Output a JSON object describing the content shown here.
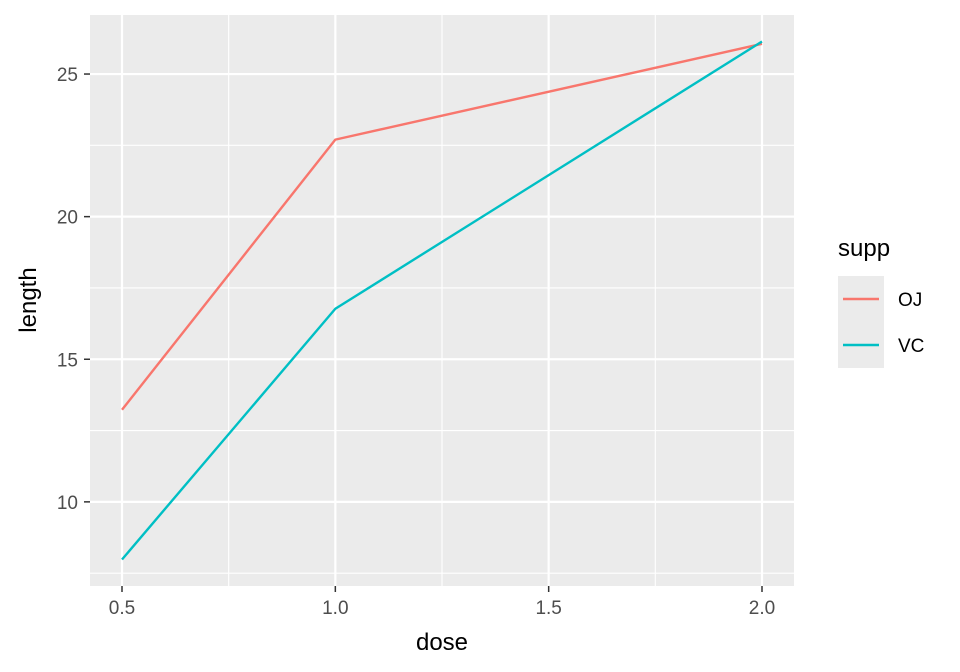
{
  "chart_data": {
    "type": "line",
    "x": [
      0.5,
      1.0,
      2.0
    ],
    "series": [
      {
        "name": "OJ",
        "values": [
          13.23,
          22.7,
          26.06
        ],
        "color": "#F8766D"
      },
      {
        "name": "VC",
        "values": [
          7.98,
          16.77,
          26.14
        ],
        "color": "#00BFC4"
      }
    ],
    "xlabel": "dose",
    "ylabel": "length",
    "xlim": [
      0.425,
      2.075
    ],
    "ylim": [
      7.05,
      27.07
    ],
    "xticks": [
      0.5,
      1.0,
      1.5,
      2.0
    ],
    "xtick_labels": [
      "0.5",
      "1.0",
      "1.5",
      "2.0"
    ],
    "yticks": [
      10,
      15,
      20,
      25
    ],
    "ytick_labels": [
      "10",
      "15",
      "20",
      "25"
    ],
    "grid": true,
    "panel_background": "#EBEBEB",
    "grid_color": "#FFFFFF",
    "legend": {
      "title": "supp",
      "position": "right",
      "entries": [
        "OJ",
        "VC"
      ]
    }
  }
}
